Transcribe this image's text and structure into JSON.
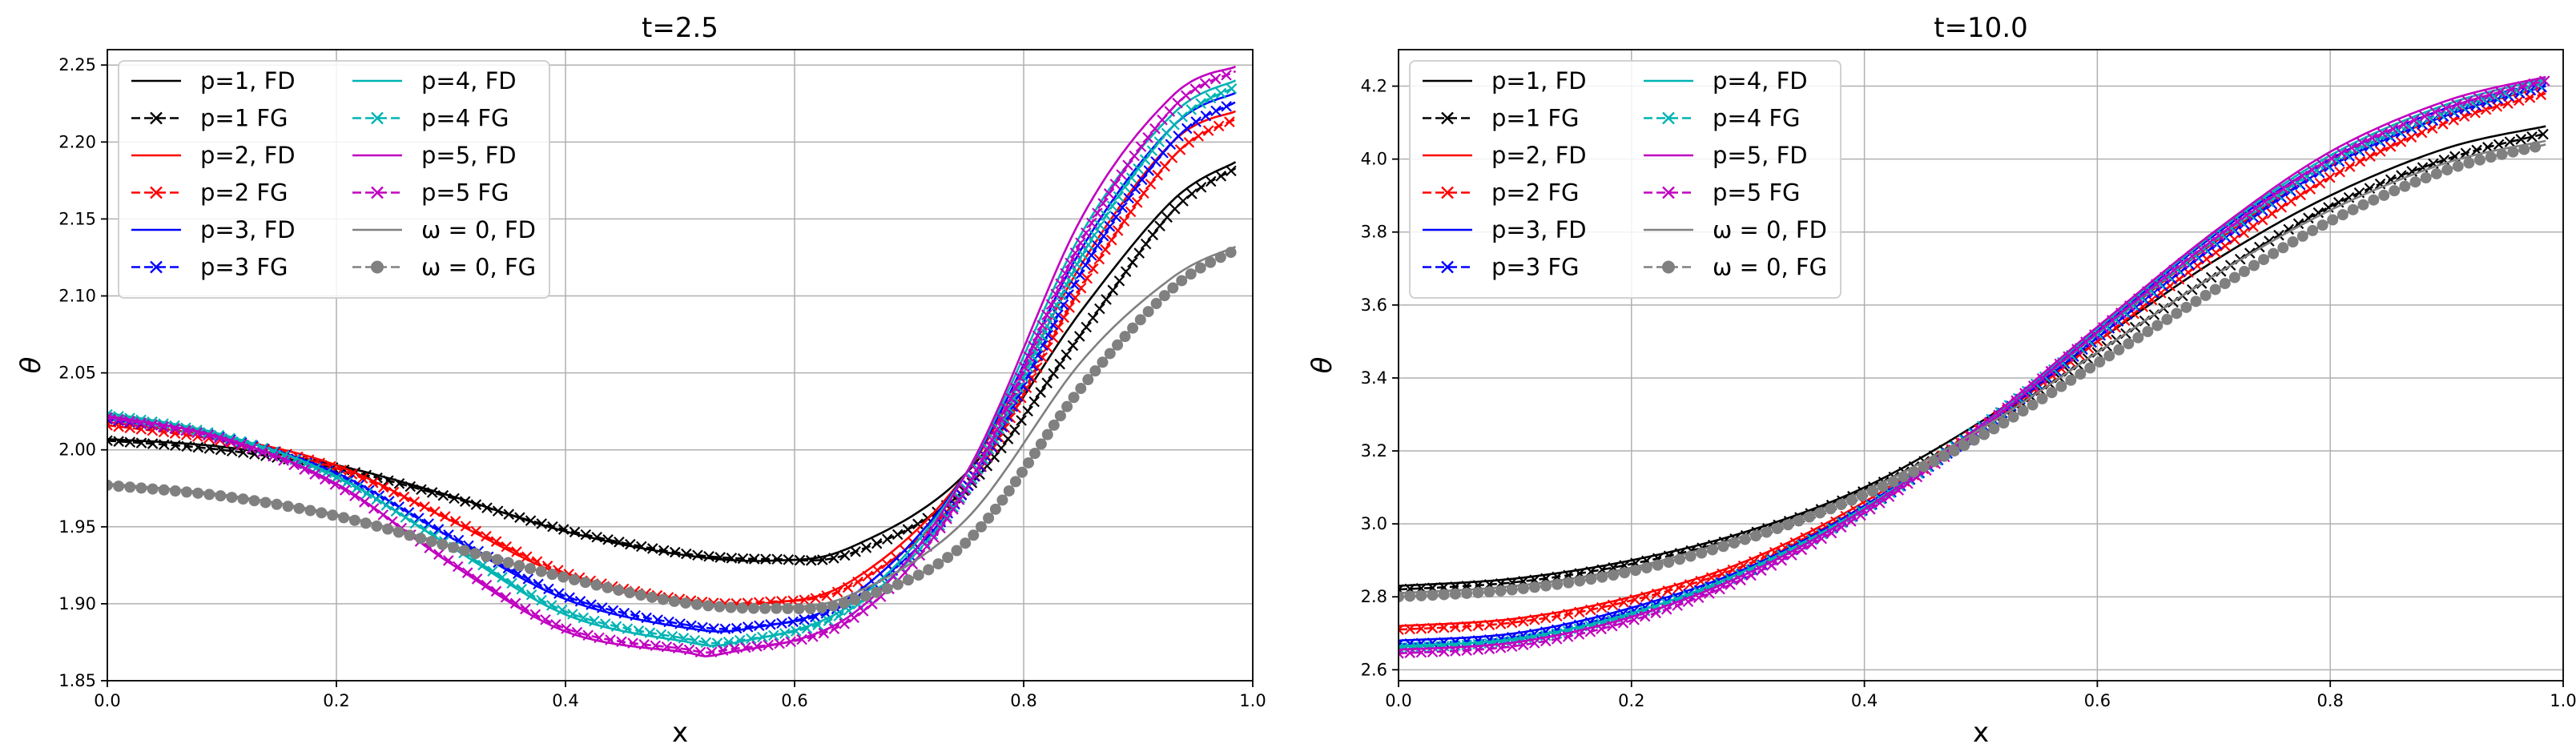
{
  "chart_data": [
    {
      "type": "line",
      "title": "t=2.5",
      "xlabel": "x",
      "ylabel": "θ",
      "xlim": [
        0.0,
        1.0
      ],
      "ylim": [
        1.85,
        2.26
      ],
      "xticks": [
        "0.0",
        "0.2",
        "0.4",
        "0.6",
        "0.8",
        "1.0"
      ],
      "yticks": [
        "1.85",
        "1.90",
        "1.95",
        "2.00",
        "2.05",
        "2.10",
        "2.15",
        "2.20",
        "2.25"
      ],
      "grid": true,
      "legend_position": "top-left",
      "series": [
        {
          "name": "p=1, FD",
          "color": "#000000",
          "style": "solid",
          "marker": "none",
          "x": [
            0.0,
            0.1,
            0.2,
            0.3,
            0.4,
            0.5,
            0.58,
            0.65,
            0.75,
            0.85,
            0.93,
            0.985
          ],
          "y": [
            2.007,
            2.002,
            1.99,
            1.97,
            1.947,
            1.932,
            1.928,
            1.937,
            1.985,
            2.09,
            2.162,
            2.187
          ]
        },
        {
          "name": "p=1 FG",
          "color": "#000000",
          "style": "dashed",
          "marker": "x",
          "x": [
            0.0,
            0.1,
            0.2,
            0.3,
            0.4,
            0.5,
            0.58,
            0.65,
            0.75,
            0.85,
            0.93,
            0.985
          ],
          "y": [
            2.006,
            2.0,
            1.988,
            1.969,
            1.948,
            1.933,
            1.929,
            1.933,
            1.975,
            2.075,
            2.155,
            2.183
          ]
        },
        {
          "name": "p=2, FD",
          "color": "#ff0000",
          "style": "solid",
          "marker": "none",
          "x": [
            0.0,
            0.1,
            0.2,
            0.3,
            0.4,
            0.5,
            0.57,
            0.65,
            0.75,
            0.85,
            0.93,
            0.985
          ],
          "y": [
            2.018,
            2.008,
            1.99,
            1.954,
            1.918,
            1.901,
            1.9,
            1.915,
            1.985,
            2.12,
            2.2,
            2.22
          ]
        },
        {
          "name": "p=2 FG",
          "color": "#ff0000",
          "style": "dashed",
          "marker": "x",
          "x": [
            0.0,
            0.1,
            0.2,
            0.3,
            0.4,
            0.5,
            0.57,
            0.65,
            0.75,
            0.85,
            0.93,
            0.985
          ],
          "y": [
            2.016,
            2.006,
            1.988,
            1.955,
            1.92,
            1.903,
            1.901,
            1.912,
            1.975,
            2.105,
            2.19,
            2.215
          ]
        },
        {
          "name": "p=3, FD",
          "color": "#0000ff",
          "style": "solid",
          "marker": "none",
          "x": [
            0.0,
            0.1,
            0.2,
            0.3,
            0.4,
            0.5,
            0.56,
            0.65,
            0.75,
            0.85,
            0.93,
            0.985
          ],
          "y": [
            2.021,
            2.009,
            1.985,
            1.943,
            1.903,
            1.885,
            1.884,
            1.905,
            1.985,
            2.13,
            2.21,
            2.232
          ]
        },
        {
          "name": "p=3 FG",
          "color": "#0000ff",
          "style": "dashed",
          "marker": "x",
          "x": [
            0.0,
            0.1,
            0.2,
            0.3,
            0.4,
            0.5,
            0.56,
            0.65,
            0.75,
            0.85,
            0.93,
            0.985
          ],
          "y": [
            2.02,
            2.008,
            1.984,
            1.944,
            1.905,
            1.887,
            1.885,
            1.902,
            1.975,
            2.115,
            2.2,
            2.226
          ]
        },
        {
          "name": "p=4, FD",
          "color": "#00b3b3",
          "style": "solid",
          "marker": "none",
          "x": [
            0.0,
            0.1,
            0.2,
            0.3,
            0.4,
            0.5,
            0.55,
            0.65,
            0.75,
            0.85,
            0.93,
            0.985
          ],
          "y": [
            2.024,
            2.01,
            1.983,
            1.937,
            1.893,
            1.876,
            1.875,
            1.9,
            1.985,
            2.14,
            2.218,
            2.24
          ]
        },
        {
          "name": "p=4 FG",
          "color": "#00b3b3",
          "style": "dashed",
          "marker": "x",
          "x": [
            0.0,
            0.1,
            0.2,
            0.3,
            0.4,
            0.5,
            0.55,
            0.65,
            0.75,
            0.85,
            0.93,
            0.985
          ],
          "y": [
            2.023,
            2.009,
            1.982,
            1.938,
            1.895,
            1.878,
            1.876,
            1.897,
            1.975,
            2.125,
            2.21,
            2.236
          ]
        },
        {
          "name": "p=5, FD",
          "color": "#c000c0",
          "style": "solid",
          "marker": "none",
          "x": [
            0.0,
            0.1,
            0.2,
            0.3,
            0.4,
            0.5,
            0.54,
            0.65,
            0.75,
            0.85,
            0.93,
            0.985
          ],
          "y": [
            2.022,
            2.008,
            1.978,
            1.926,
            1.882,
            1.869,
            1.868,
            1.893,
            1.985,
            2.15,
            2.23,
            2.249
          ]
        },
        {
          "name": "p=5 FG",
          "color": "#c000c0",
          "style": "dashed",
          "marker": "x",
          "x": [
            0.0,
            0.1,
            0.2,
            0.3,
            0.4,
            0.5,
            0.54,
            0.65,
            0.75,
            0.85,
            0.93,
            0.985
          ],
          "y": [
            2.021,
            2.007,
            1.977,
            1.927,
            1.884,
            1.871,
            1.87,
            1.89,
            1.975,
            2.135,
            2.222,
            2.246
          ]
        },
        {
          "name": "ω = 0, FD",
          "color": "#808080",
          "style": "solid",
          "marker": "none",
          "x": [
            0.0,
            0.1,
            0.2,
            0.3,
            0.4,
            0.5,
            0.58,
            0.65,
            0.75,
            0.85,
            0.93,
            0.985
          ],
          "y": [
            1.978,
            1.971,
            1.958,
            1.938,
            1.917,
            1.902,
            1.898,
            1.906,
            1.955,
            2.057,
            2.112,
            2.132
          ]
        },
        {
          "name": "ω = 0, FG",
          "color": "#808080",
          "style": "dashed",
          "marker": "o",
          "x": [
            0.0,
            0.1,
            0.2,
            0.3,
            0.4,
            0.5,
            0.58,
            0.65,
            0.75,
            0.85,
            0.93,
            0.985
          ],
          "y": [
            1.977,
            1.97,
            1.957,
            1.937,
            1.917,
            1.901,
            1.897,
            1.902,
            1.94,
            2.04,
            2.105,
            2.13
          ]
        }
      ]
    },
    {
      "type": "line",
      "title": "t=10.0",
      "xlabel": "x",
      "ylabel": "θ",
      "xlim": [
        0.0,
        1.0
      ],
      "ylim": [
        2.57,
        4.3
      ],
      "xticks": [
        "0.0",
        "0.2",
        "0.4",
        "0.6",
        "0.8",
        "1.0"
      ],
      "yticks": [
        "2.6",
        "2.8",
        "3.0",
        "3.2",
        "3.4",
        "3.6",
        "3.8",
        "4.0",
        "4.2"
      ],
      "grid": true,
      "legend_position": "top-left",
      "series": [
        {
          "name": "p=1, FD",
          "color": "#000000",
          "style": "solid",
          "marker": "none",
          "x": [
            0.0,
            0.1,
            0.2,
            0.3,
            0.4,
            0.5,
            0.6,
            0.7,
            0.8,
            0.9,
            0.985
          ],
          "y": [
            2.83,
            2.85,
            2.9,
            2.98,
            3.1,
            3.28,
            3.5,
            3.72,
            3.9,
            4.03,
            4.09
          ]
        },
        {
          "name": "p=1 FG",
          "color": "#000000",
          "style": "dashed",
          "marker": "x",
          "x": [
            0.0,
            0.1,
            0.2,
            0.3,
            0.4,
            0.5,
            0.6,
            0.7,
            0.8,
            0.9,
            0.985
          ],
          "y": [
            2.82,
            2.84,
            2.89,
            2.97,
            3.09,
            3.26,
            3.47,
            3.68,
            3.87,
            4.0,
            4.07
          ]
        },
        {
          "name": "p=2, FD",
          "color": "#ff0000",
          "style": "solid",
          "marker": "none",
          "x": [
            0.0,
            0.1,
            0.2,
            0.3,
            0.4,
            0.5,
            0.6,
            0.7,
            0.8,
            0.9,
            0.985
          ],
          "y": [
            2.72,
            2.74,
            2.8,
            2.9,
            3.06,
            3.27,
            3.52,
            3.77,
            3.98,
            4.12,
            4.2
          ]
        },
        {
          "name": "p=2 FG",
          "color": "#ff0000",
          "style": "dashed",
          "marker": "x",
          "x": [
            0.0,
            0.1,
            0.2,
            0.3,
            0.4,
            0.5,
            0.6,
            0.7,
            0.8,
            0.9,
            0.985
          ],
          "y": [
            2.71,
            2.73,
            2.79,
            2.89,
            3.05,
            3.26,
            3.5,
            3.74,
            3.95,
            4.1,
            4.18
          ]
        },
        {
          "name": "p=3, FD",
          "color": "#0000ff",
          "style": "solid",
          "marker": "none",
          "x": [
            0.0,
            0.1,
            0.2,
            0.3,
            0.4,
            0.5,
            0.6,
            0.7,
            0.8,
            0.9,
            0.985
          ],
          "y": [
            2.68,
            2.7,
            2.77,
            2.88,
            3.05,
            3.27,
            3.53,
            3.79,
            4.0,
            4.14,
            4.21
          ]
        },
        {
          "name": "p=3 FG",
          "color": "#0000ff",
          "style": "dashed",
          "marker": "x",
          "x": [
            0.0,
            0.1,
            0.2,
            0.3,
            0.4,
            0.5,
            0.6,
            0.7,
            0.8,
            0.9,
            0.985
          ],
          "y": [
            2.67,
            2.69,
            2.76,
            2.87,
            3.04,
            3.26,
            3.51,
            3.76,
            3.98,
            4.12,
            4.2
          ]
        },
        {
          "name": "p=4, FD",
          "color": "#00b3b3",
          "style": "solid",
          "marker": "none",
          "x": [
            0.0,
            0.1,
            0.2,
            0.3,
            0.4,
            0.5,
            0.6,
            0.7,
            0.8,
            0.9,
            0.985
          ],
          "y": [
            2.665,
            2.685,
            2.755,
            2.875,
            3.045,
            3.27,
            3.535,
            3.795,
            4.01,
            4.15,
            4.22
          ]
        },
        {
          "name": "p=4 FG",
          "color": "#00b3b3",
          "style": "dashed",
          "marker": "x",
          "x": [
            0.0,
            0.1,
            0.2,
            0.3,
            0.4,
            0.5,
            0.6,
            0.7,
            0.8,
            0.9,
            0.985
          ],
          "y": [
            2.66,
            2.68,
            2.75,
            2.87,
            3.04,
            3.265,
            3.52,
            3.775,
            3.99,
            4.13,
            4.21
          ]
        },
        {
          "name": "p=5, FD",
          "color": "#c000c0",
          "style": "solid",
          "marker": "none",
          "x": [
            0.0,
            0.1,
            0.2,
            0.3,
            0.4,
            0.5,
            0.6,
            0.7,
            0.8,
            0.9,
            0.985
          ],
          "y": [
            2.655,
            2.675,
            2.745,
            2.865,
            3.04,
            3.27,
            3.54,
            3.8,
            4.02,
            4.16,
            4.225
          ]
        },
        {
          "name": "p=5 FG",
          "color": "#c000c0",
          "style": "dashed",
          "marker": "x",
          "x": [
            0.0,
            0.1,
            0.2,
            0.3,
            0.4,
            0.5,
            0.6,
            0.7,
            0.8,
            0.9,
            0.985
          ],
          "y": [
            2.645,
            2.665,
            2.735,
            2.855,
            3.03,
            3.26,
            3.525,
            3.78,
            4.0,
            4.14,
            4.215
          ]
        },
        {
          "name": "ω = 0, FD",
          "color": "#808080",
          "style": "solid",
          "marker": "none",
          "x": [
            0.0,
            0.1,
            0.2,
            0.3,
            0.4,
            0.5,
            0.6,
            0.7,
            0.8,
            0.9,
            0.985
          ],
          "y": [
            2.81,
            2.83,
            2.88,
            2.97,
            3.09,
            3.26,
            3.47,
            3.68,
            3.86,
            3.99,
            4.05
          ]
        },
        {
          "name": "ω = 0, FG",
          "color": "#808080",
          "style": "dashed",
          "marker": "o",
          "x": [
            0.0,
            0.1,
            0.2,
            0.3,
            0.4,
            0.5,
            0.6,
            0.7,
            0.8,
            0.9,
            0.985
          ],
          "y": [
            2.8,
            2.82,
            2.87,
            2.96,
            3.08,
            3.24,
            3.44,
            3.64,
            3.83,
            3.97,
            4.04
          ]
        }
      ]
    }
  ]
}
